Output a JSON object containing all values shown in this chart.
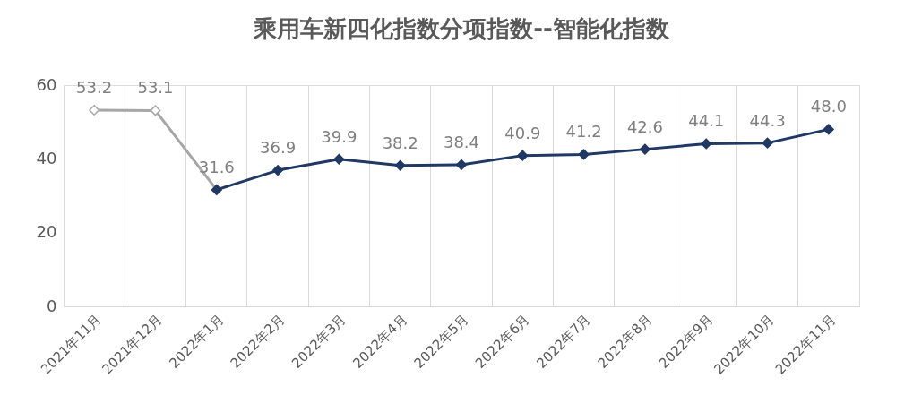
{
  "chart_data": {
    "type": "line",
    "title": "乘用车新四化指数分项指数--智能化指数",
    "categories": [
      "2021年11月",
      "2021年12月",
      "2022年1月",
      "2022年2月",
      "2022年3月",
      "2022年4月",
      "2022年5月",
      "2022年6月",
      "2022年7月",
      "2022年8月",
      "2022年9月",
      "2022年10月",
      "2022年11月"
    ],
    "series": [
      {
        "color": "#a6a6a6",
        "values": [
          53.2,
          53.1,
          31.6,
          null,
          null,
          null,
          null,
          null,
          null,
          null,
          null,
          null,
          null
        ],
        "value_labels": [
          "53.2",
          "53.1",
          null,
          null,
          null,
          null,
          null,
          null,
          null,
          null,
          null,
          null,
          null
        ]
      },
      {
        "color": "#1f3864",
        "values": [
          null,
          null,
          31.6,
          36.9,
          39.9,
          38.2,
          38.4,
          40.9,
          41.2,
          42.6,
          44.1,
          44.3,
          48.0
        ],
        "value_labels": [
          null,
          null,
          "31.6",
          "36.9",
          "39.9",
          "38.2",
          "38.4",
          "40.9",
          "41.2",
          "42.6",
          "44.1",
          "44.3",
          "48.0"
        ]
      }
    ],
    "ylim": [
      0,
      60
    ],
    "yticks": [
      0,
      20,
      40,
      60
    ],
    "grid": "x",
    "marker": "diamond",
    "line_style": "solid"
  }
}
